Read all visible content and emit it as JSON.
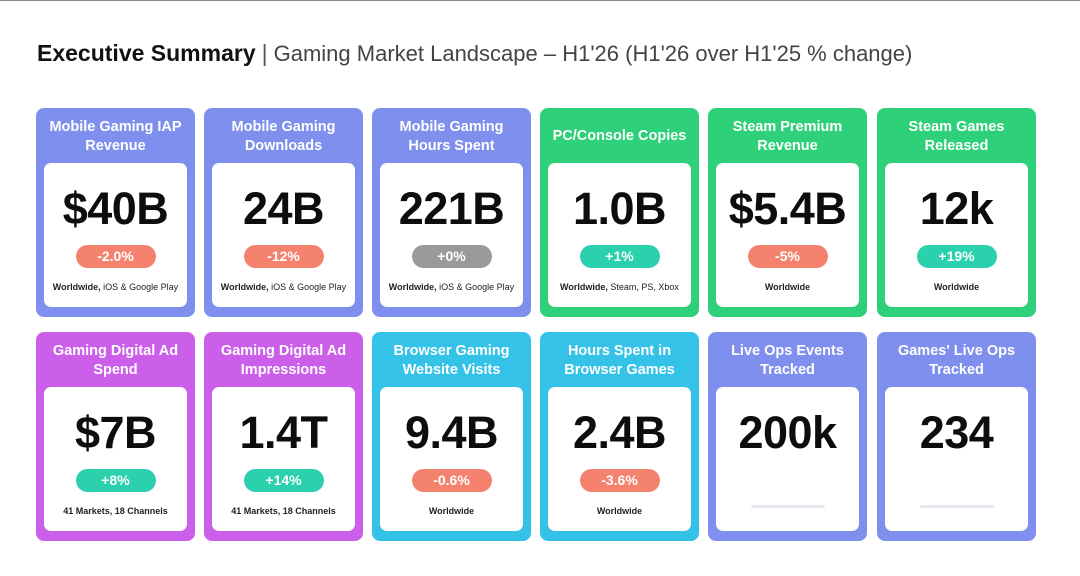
{
  "header": {
    "title": "Executive Summary",
    "separator": "|",
    "subtitle": "Gaming Market Landscape – H1'26 (H1'26 over H1'25 % change)"
  },
  "cards": [
    {
      "title": "Mobile Gaming IAP Revenue",
      "value": "$40B",
      "change": "-2.0%",
      "footer_bold": "Worldwide,",
      "footer": " iOS & Google Play"
    },
    {
      "title": "Mobile Gaming Downloads",
      "value": "24B",
      "change": "-12%",
      "footer_bold": "Worldwide,",
      "footer": " iOS & Google Play"
    },
    {
      "title": "Mobile Gaming Hours Spent",
      "value": "221B",
      "change": "+0%",
      "footer_bold": "Worldwide,",
      "footer": " iOS & Google Play"
    },
    {
      "title": "PC/Console Copies",
      "value": "1.0B",
      "change": "+1%",
      "footer_bold": "Worldwide,",
      "footer": " Steam, PS, Xbox"
    },
    {
      "title": "Steam Premium Revenue",
      "value": "$5.4B",
      "change": "-5%",
      "footer_bold": "Worldwide",
      "footer": ""
    },
    {
      "title": "Steam Games Released",
      "value": "12k",
      "change": "+19%",
      "footer_bold": "Worldwide",
      "footer": ""
    },
    {
      "title": "Gaming Digital Ad Spend",
      "value": "$7B",
      "change": "+8%",
      "footer_bold": "41 Markets, 18 Channels",
      "footer": ""
    },
    {
      "title": "Gaming Digital Ad Impressions",
      "value": "1.4T",
      "change": "+14%",
      "footer_bold": "41 Markets, 18 Channels",
      "footer": ""
    },
    {
      "title": "Browser Gaming Website Visits",
      "value": "9.4B",
      "change": "-0.6%",
      "footer_bold": "Worldwide",
      "footer": ""
    },
    {
      "title": "Hours Spent in Browser Games",
      "value": "2.4B",
      "change": "-3.6%",
      "footer_bold": "Worldwide",
      "footer": ""
    },
    {
      "title": "Live Ops Events Tracked",
      "value": "200k",
      "change": "",
      "footer_bold": "",
      "footer": ""
    },
    {
      "title": "Games' Live Ops Tracked",
      "value": "234",
      "change": "",
      "footer_bold": "",
      "footer": ""
    }
  ],
  "colors": {
    "blue": "#7e8fed",
    "green": "#2fd07a",
    "purple": "#cc5fe9",
    "cyan": "#35c2e8",
    "negative": "#f4826e",
    "positive": "#2bd1ad",
    "neutral": "#9a9a9a"
  }
}
